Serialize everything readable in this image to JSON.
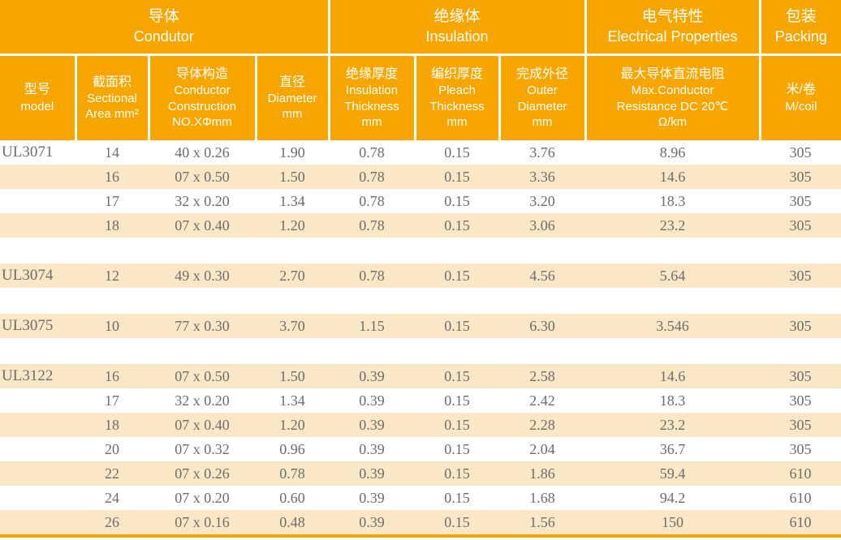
{
  "colors": {
    "header_bg": "#F7A600",
    "row_alt_bg": "#FAE7C6",
    "data_text": "#6e6c69",
    "header_text": "#ffffff"
  },
  "table": {
    "groups": [
      {
        "key": "conductor",
        "zh": "导体",
        "en": "Condutor",
        "colspan": 4
      },
      {
        "key": "insulation",
        "zh": "绝缘体",
        "en": "Insulation",
        "colspan": 3
      },
      {
        "key": "electrical",
        "zh": "电气特性",
        "en": "Electrical Properties",
        "colspan": 1
      },
      {
        "key": "packing",
        "zh": "包装",
        "en": "Packing",
        "colspan": 1
      }
    ],
    "columns": [
      {
        "key": "model",
        "lines": [
          "型号",
          "model"
        ]
      },
      {
        "key": "sectional-area",
        "lines": [
          "截面积",
          "Sectional",
          "Area mm²"
        ]
      },
      {
        "key": "conductor-construction",
        "lines": [
          "导体构造",
          "Conductor",
          "Construction",
          "NO.XΦmm"
        ]
      },
      {
        "key": "diameter",
        "lines": [
          "直径",
          "Diameter",
          "mm"
        ]
      },
      {
        "key": "insulation-thickness",
        "lines": [
          "绝缘厚度",
          "Insulation",
          "Thickness",
          "mm"
        ]
      },
      {
        "key": "pleach-thickness",
        "lines": [
          "编织厚度",
          "Pleach",
          "Thickness",
          "mm"
        ]
      },
      {
        "key": "outer-diameter",
        "lines": [
          "完成外径",
          "Outer",
          "Diameter",
          "mm"
        ]
      },
      {
        "key": "max-resistance",
        "lines": [
          "最大导体直流电阻",
          "Max.Conductor",
          "Resistance DC 20℃",
          "Ω/km"
        ]
      },
      {
        "key": "m-coil",
        "lines": [
          "米/卷",
          "M/coil"
        ]
      }
    ],
    "rows": [
      {
        "type": "data",
        "cells": [
          "UL3071",
          "14",
          "40 x 0.26",
          "1.90",
          "0.78",
          "0.15",
          "3.76",
          "8.96",
          "305"
        ]
      },
      {
        "type": "data",
        "cells": [
          "",
          "16",
          "07 x 0.50",
          "1.50",
          "0.78",
          "0.15",
          "3.36",
          "14.6",
          "305"
        ]
      },
      {
        "type": "data",
        "cells": [
          "",
          "17",
          "32 x 0.20",
          "1.34",
          "0.78",
          "0.15",
          "3.20",
          "18.3",
          "305"
        ]
      },
      {
        "type": "data",
        "cells": [
          "",
          "18",
          "07 x 0.40",
          "1.20",
          "0.78",
          "0.15",
          "3.06",
          "23.2",
          "305"
        ]
      },
      {
        "type": "spacer"
      },
      {
        "type": "data",
        "cells": [
          "UL3074",
          "12",
          "49 x 0.30",
          "2.70",
          "0.78",
          "0.15",
          "4.56",
          "5.64",
          "305"
        ]
      },
      {
        "type": "spacer"
      },
      {
        "type": "data",
        "cells": [
          "UL3075",
          "10",
          "77 x 0.30",
          "3.70",
          "1.15",
          "0.15",
          "6.30",
          "3.546",
          "305"
        ]
      },
      {
        "type": "spacer"
      },
      {
        "type": "data",
        "cells": [
          "UL3122",
          "16",
          "07 x 0.50",
          "1.50",
          "0.39",
          "0.15",
          "2.58",
          "14.6",
          "305"
        ]
      },
      {
        "type": "data",
        "cells": [
          "",
          "17",
          "32 x 0.20",
          "1.34",
          "0.39",
          "0.15",
          "2.42",
          "18.3",
          "305"
        ]
      },
      {
        "type": "data",
        "cells": [
          "",
          "18",
          "07 x 0.40",
          "1.20",
          "0.39",
          "0.15",
          "2.28",
          "23.2",
          "305"
        ]
      },
      {
        "type": "data",
        "cells": [
          "",
          "20",
          "07 x 0.32",
          "0.96",
          "0.39",
          "0.15",
          "2.04",
          "36.7",
          "305"
        ]
      },
      {
        "type": "data",
        "cells": [
          "",
          "22",
          "07 x 0.26",
          "0.78",
          "0.39",
          "0.15",
          "1.86",
          "59.4",
          "610"
        ]
      },
      {
        "type": "data",
        "cells": [
          "",
          "24",
          "07 x 0.20",
          "0.60",
          "0.39",
          "0.15",
          "1.68",
          "94.2",
          "610"
        ]
      },
      {
        "type": "data",
        "cells": [
          "",
          "26",
          "07 x 0.16",
          "0.48",
          "0.39",
          "0.15",
          "1.56",
          "150",
          "610"
        ]
      }
    ]
  }
}
